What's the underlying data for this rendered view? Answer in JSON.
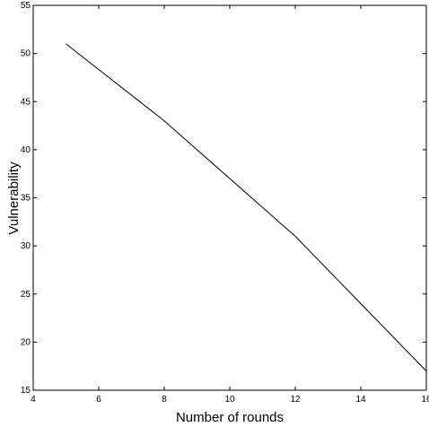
{
  "chart_data": {
    "type": "line",
    "title": "",
    "xlabel": "Number of rounds",
    "ylabel": "Vulnerability",
    "xlim": [
      4,
      16
    ],
    "ylim": [
      15,
      55
    ],
    "xticks": [
      4,
      6,
      8,
      10,
      12,
      14,
      16
    ],
    "yticks": [
      15,
      20,
      25,
      30,
      35,
      40,
      45,
      50,
      55
    ],
    "grid": false,
    "legend": "none",
    "series": [
      {
        "x": [
          5,
          8,
          12,
          16
        ],
        "y": [
          51,
          43,
          31,
          17
        ],
        "color": "#000000"
      }
    ]
  }
}
